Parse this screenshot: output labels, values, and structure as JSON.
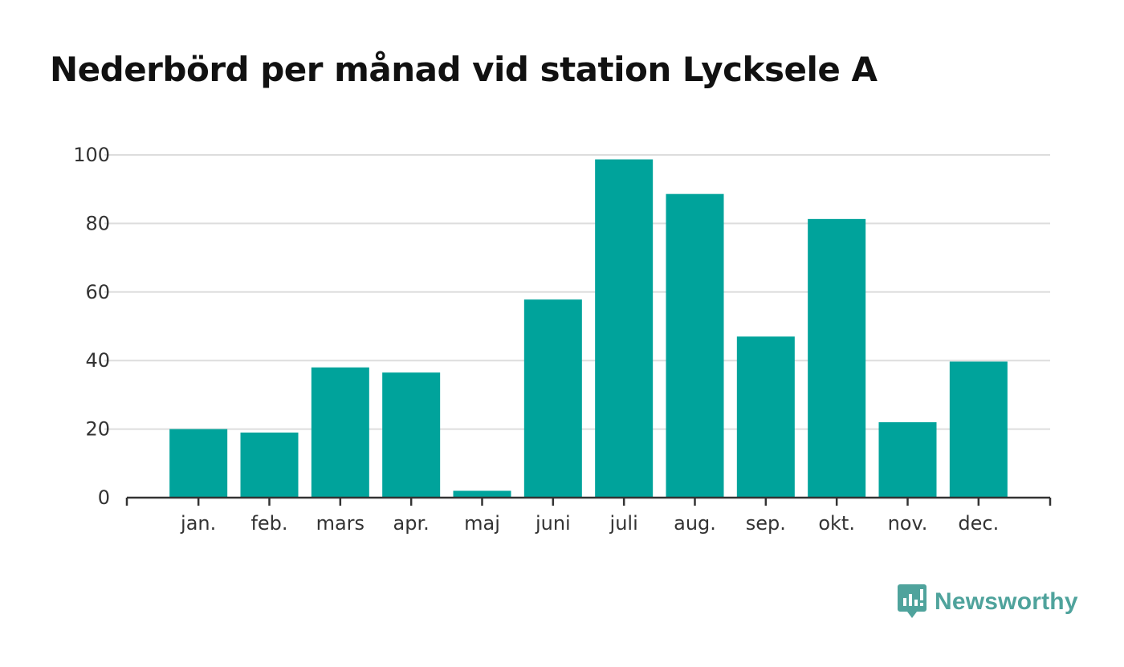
{
  "header": {
    "title": "Nederbörd per månad vid station Lycksele A"
  },
  "chart_data": {
    "type": "bar",
    "title": "Nederbörd per månad vid station Lycksele A",
    "xlabel": "",
    "ylabel": "",
    "categories": [
      "jan.",
      "feb.",
      "mars",
      "apr.",
      "maj",
      "juni",
      "juli",
      "aug.",
      "sep.",
      "okt.",
      "nov.",
      "dec."
    ],
    "values": [
      20,
      19,
      38,
      36.5,
      2,
      57.8,
      98.7,
      88.6,
      47,
      81.3,
      22,
      39.7
    ],
    "ylim": [
      0,
      100
    ],
    "yticks": [
      0,
      20,
      40,
      60,
      80,
      100
    ],
    "grid": true,
    "legend": "none",
    "bar_color": "#00a39b"
  },
  "logo": {
    "text": "Newsworthy",
    "color": "#4fa39c"
  }
}
